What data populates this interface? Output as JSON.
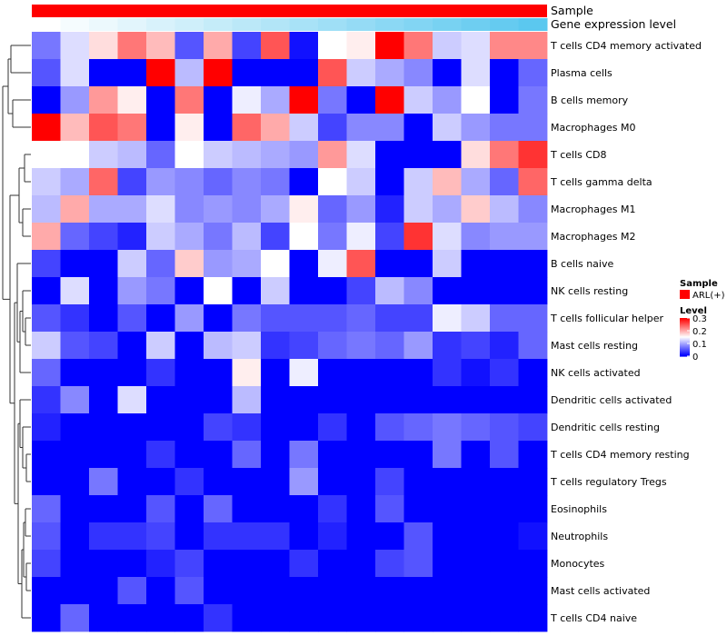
{
  "chart_data": {
    "type": "heatmap",
    "title": "",
    "annotations": {
      "sample_label": "Sample",
      "gene_label": "Gene expression level",
      "sample_color": "#ff0000",
      "gene_gradient": [
        "#ffffff",
        "#5bc8ef"
      ]
    },
    "row_labels": [
      "T cells CD4 memory activated",
      "Plasma cells",
      "B cells memory",
      "Macrophages M0",
      "T cells CD8",
      "T cells gamma delta",
      "Macrophages M1",
      "Macrophages M2",
      "B cells naive",
      "NK cells resting",
      "T cells follicular helper",
      "Mast cells resting",
      "NK cells activated",
      "Dendritic cells activated",
      "Dendritic cells resting",
      "T cells CD4 memory resting",
      "T cells regulatory  Tregs",
      "Eosinophils",
      "Neutrophils",
      "Monocytes",
      "Mast cells activated",
      "T cells CD4 naive"
    ],
    "n_columns": 18,
    "values": [
      [
        0.07,
        0.13,
        0.17,
        0.23,
        0.19,
        0.05,
        0.2,
        0.04,
        0.25,
        0.01,
        0.15,
        0.16,
        0.3,
        0.23,
        0.12,
        0.13,
        0.22,
        0.22
      ],
      [
        0.05,
        0.13,
        0.0,
        0.0,
        0.3,
        0.11,
        0.3,
        0.0,
        0.0,
        0.0,
        0.25,
        0.12,
        0.1,
        0.08,
        0.0,
        0.13,
        0.0,
        0.06
      ],
      [
        0.0,
        0.09,
        0.21,
        0.16,
        0.0,
        0.23,
        0.0,
        0.14,
        0.1,
        0.3,
        0.07,
        0.0,
        0.3,
        0.12,
        0.09,
        0.15,
        0.0,
        0.07
      ],
      [
        0.3,
        0.19,
        0.25,
        0.23,
        0.0,
        0.16,
        0.0,
        0.24,
        0.2,
        0.12,
        0.04,
        0.08,
        0.08,
        0.0,
        0.12,
        0.09,
        0.07,
        0.07
      ],
      [
        0.15,
        0.15,
        0.12,
        0.11,
        0.06,
        0.15,
        0.12,
        0.11,
        0.1,
        0.09,
        0.21,
        0.13,
        0.0,
        0.0,
        0.0,
        0.17,
        0.23,
        0.27
      ],
      [
        0.12,
        0.1,
        0.24,
        0.04,
        0.09,
        0.08,
        0.06,
        0.08,
        0.07,
        0.0,
        0.15,
        0.12,
        0.0,
        0.12,
        0.19,
        0.1,
        0.06,
        0.24
      ],
      [
        0.11,
        0.2,
        0.1,
        0.1,
        0.13,
        0.08,
        0.09,
        0.08,
        0.1,
        0.16,
        0.06,
        0.09,
        0.02,
        0.12,
        0.1,
        0.18,
        0.11,
        0.08
      ],
      [
        0.2,
        0.06,
        0.04,
        0.02,
        0.12,
        0.1,
        0.07,
        0.11,
        0.04,
        0.15,
        0.07,
        0.14,
        0.04,
        0.27,
        0.13,
        0.08,
        0.09,
        0.09
      ],
      [
        0.04,
        0.0,
        0.0,
        0.12,
        0.06,
        0.18,
        0.09,
        0.1,
        0.15,
        0.0,
        0.14,
        0.25,
        0.0,
        0.0,
        0.12,
        0.0,
        0.0,
        0.0
      ],
      [
        0.0,
        0.13,
        0.0,
        0.09,
        0.07,
        0.0,
        0.15,
        0.0,
        0.12,
        0.0,
        0.0,
        0.04,
        0.11,
        0.08,
        0.0,
        0.0,
        0.0,
        0.0
      ],
      [
        0.05,
        0.03,
        0.0,
        0.05,
        0.0,
        0.09,
        0.0,
        0.07,
        0.05,
        0.05,
        0.05,
        0.06,
        0.04,
        0.04,
        0.14,
        0.12,
        0.06,
        0.06
      ],
      [
        0.12,
        0.05,
        0.04,
        0.0,
        0.12,
        0.0,
        0.11,
        0.12,
        0.03,
        0.04,
        0.06,
        0.07,
        0.06,
        0.09,
        0.03,
        0.04,
        0.02,
        0.06
      ],
      [
        0.06,
        0.0,
        0.0,
        0.0,
        0.03,
        0.0,
        0.0,
        0.16,
        0.0,
        0.14,
        0.0,
        0.0,
        0.0,
        0.0,
        0.03,
        0.01,
        0.03,
        0.0
      ],
      [
        0.03,
        0.08,
        0.0,
        0.13,
        0.0,
        0.0,
        0.0,
        0.11,
        0.0,
        0.0,
        0.0,
        0.0,
        0.0,
        0.0,
        0.0,
        0.0,
        0.0,
        0.0
      ],
      [
        0.02,
        0.0,
        0.0,
        0.0,
        0.0,
        0.0,
        0.04,
        0.03,
        0.0,
        0.0,
        0.03,
        0.0,
        0.05,
        0.06,
        0.07,
        0.06,
        0.05,
        0.04
      ],
      [
        0.0,
        0.0,
        0.0,
        0.0,
        0.03,
        0.0,
        0.0,
        0.06,
        0.0,
        0.07,
        0.0,
        0.0,
        0.0,
        0.0,
        0.07,
        0.0,
        0.05,
        0.0
      ],
      [
        0.0,
        0.0,
        0.07,
        0.0,
        0.0,
        0.03,
        0.0,
        0.0,
        0.0,
        0.09,
        0.0,
        0.0,
        0.04,
        0.0,
        0.0,
        0.0,
        0.0,
        0.0
      ],
      [
        0.06,
        0.0,
        0.0,
        0.0,
        0.05,
        0.0,
        0.06,
        0.0,
        0.0,
        0.0,
        0.03,
        0.0,
        0.05,
        0.0,
        0.0,
        0.0,
        0.0,
        0.0
      ],
      [
        0.05,
        0.0,
        0.03,
        0.03,
        0.04,
        0.0,
        0.03,
        0.03,
        0.03,
        0.0,
        0.02,
        0.0,
        0.0,
        0.05,
        0.0,
        0.0,
        0.0,
        0.01
      ],
      [
        0.04,
        0.0,
        0.0,
        0.0,
        0.02,
        0.04,
        0.0,
        0.0,
        0.0,
        0.03,
        0.0,
        0.0,
        0.04,
        0.05,
        0.0,
        0.0,
        0.0,
        0.0
      ],
      [
        0.0,
        0.0,
        0.0,
        0.05,
        0.0,
        0.05,
        0.0,
        0.0,
        0.0,
        0.0,
        0.0,
        0.0,
        0.0,
        0.0,
        0.0,
        0.0,
        0.0,
        0.0
      ],
      [
        0.0,
        0.06,
        0.0,
        0.0,
        0.0,
        0.0,
        0.03,
        0.0,
        0.0,
        0.0,
        0.0,
        0.0,
        0.0,
        0.0,
        0.0,
        0.0,
        0.0,
        0.0
      ]
    ],
    "color_scale": {
      "min": 0,
      "mid": 0.15,
      "max": 0.3,
      "colors": [
        "#0000ff",
        "#ffffff",
        "#ff0000"
      ]
    },
    "legend": {
      "placement": "right",
      "sample_title": "Sample",
      "sample_entry": "ARL(+)",
      "level_title": "Level",
      "level_ticks": [
        "0.3",
        "0.2",
        "0.1",
        "0"
      ],
      "level_tick_values": [
        0.3,
        0.2,
        0.1,
        0
      ]
    },
    "dendrogram": "row"
  }
}
